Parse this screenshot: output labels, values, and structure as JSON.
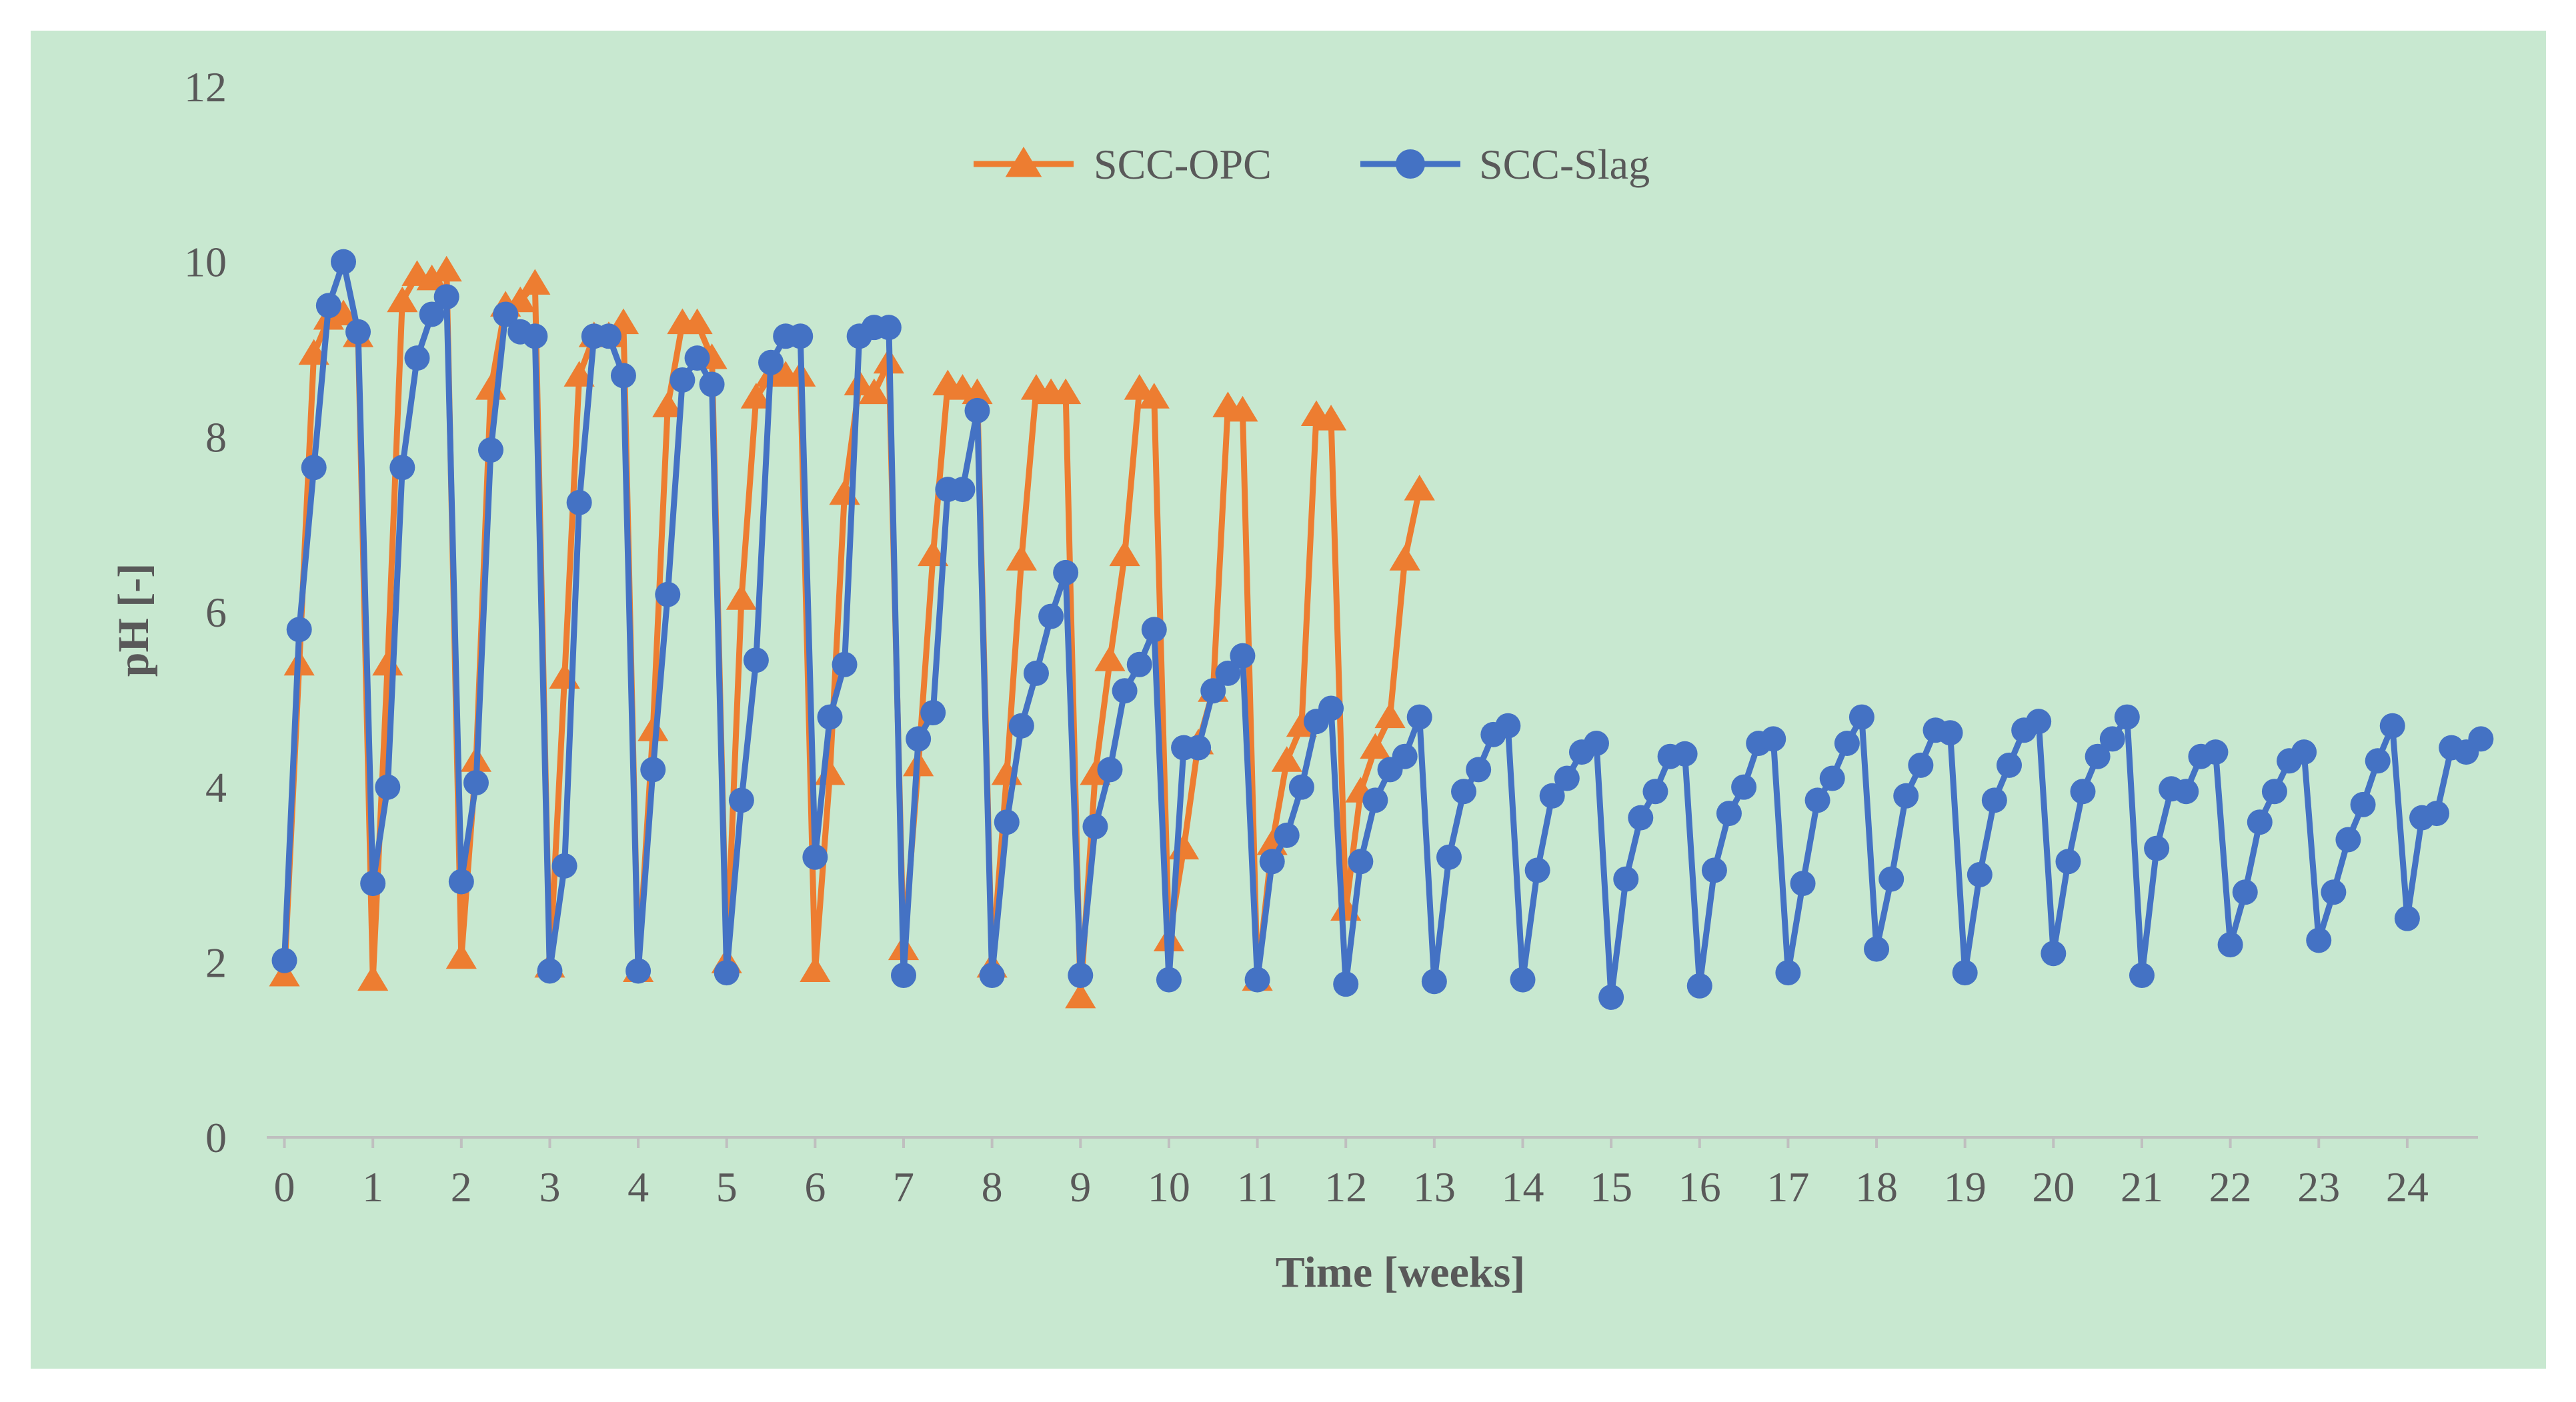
{
  "colors": {
    "page_background": "#ffffff",
    "plot_background": "#c8e8d0",
    "axis_line": "#bfbfbf",
    "text": "#595959"
  },
  "chart_data": {
    "type": "line",
    "title": "",
    "xlabel": "Time [weeks]",
    "ylabel": "pH [-]",
    "xlim": [
      -0.2,
      24.8
    ],
    "ylim": [
      0,
      12
    ],
    "x_ticks": [
      "0",
      "1",
      "2",
      "3",
      "4",
      "5",
      "6",
      "7",
      "8",
      "9",
      "10",
      "11",
      "12",
      "13",
      "14",
      "15",
      "16",
      "17",
      "18",
      "19",
      "20",
      "21",
      "22",
      "23",
      "24"
    ],
    "y_ticks": [
      "0",
      "2",
      "4",
      "6",
      "8",
      "10",
      "12"
    ],
    "legend_position": "top-center",
    "series": [
      {
        "name": "SCC-OPC",
        "color": "#ed7d31",
        "marker": "triangle",
        "points": [
          [
            0,
            1.85
          ],
          [
            0.167,
            5.4
          ],
          [
            0.333,
            8.95
          ],
          [
            0.5,
            9.35
          ],
          [
            0.667,
            9.4
          ],
          [
            0.833,
            9.15
          ],
          [
            1.0,
            1.8
          ],
          [
            1.167,
            5.4
          ],
          [
            1.333,
            9.55
          ],
          [
            1.5,
            9.85
          ],
          [
            1.667,
            9.8
          ],
          [
            1.833,
            9.9
          ],
          [
            2.0,
            2.05
          ],
          [
            2.167,
            4.3
          ],
          [
            2.333,
            8.55
          ],
          [
            2.5,
            9.5
          ],
          [
            2.667,
            9.55
          ],
          [
            2.833,
            9.75
          ],
          [
            3.0,
            1.95
          ],
          [
            3.167,
            5.25
          ],
          [
            3.333,
            8.7
          ],
          [
            3.5,
            9.15
          ],
          [
            3.667,
            9.15
          ],
          [
            3.833,
            9.3
          ],
          [
            4.0,
            1.9
          ],
          [
            4.167,
            4.65
          ],
          [
            4.333,
            8.35
          ],
          [
            4.5,
            9.3
          ],
          [
            4.667,
            9.3
          ],
          [
            4.833,
            8.9
          ],
          [
            5.0,
            2.0
          ],
          [
            5.167,
            6.15
          ],
          [
            5.333,
            8.45
          ],
          [
            5.5,
            8.7
          ],
          [
            5.667,
            8.7
          ],
          [
            5.833,
            8.7
          ],
          [
            6.0,
            1.9
          ],
          [
            6.167,
            4.15
          ],
          [
            6.333,
            7.35
          ],
          [
            6.5,
            8.6
          ],
          [
            6.667,
            8.5
          ],
          [
            6.833,
            8.85
          ],
          [
            7.0,
            2.15
          ],
          [
            7.167,
            4.25
          ],
          [
            7.333,
            6.65
          ],
          [
            7.5,
            8.6
          ],
          [
            7.667,
            8.55
          ],
          [
            7.833,
            8.5
          ],
          [
            8.0,
            1.95
          ],
          [
            8.167,
            4.15
          ],
          [
            8.333,
            6.6
          ],
          [
            8.5,
            8.55
          ],
          [
            8.667,
            8.5
          ],
          [
            8.833,
            8.5
          ],
          [
            9.0,
            1.6
          ],
          [
            9.167,
            4.15
          ],
          [
            9.333,
            5.45
          ],
          [
            9.5,
            6.65
          ],
          [
            9.667,
            8.55
          ],
          [
            9.833,
            8.45
          ],
          [
            10.0,
            2.25
          ],
          [
            10.167,
            3.3
          ],
          [
            10.333,
            4.5
          ],
          [
            10.5,
            5.1
          ],
          [
            10.667,
            8.35
          ],
          [
            10.833,
            8.3
          ],
          [
            11.0,
            1.8
          ],
          [
            11.167,
            3.35
          ],
          [
            11.333,
            4.3
          ],
          [
            11.5,
            4.7
          ],
          [
            11.667,
            8.25
          ],
          [
            11.833,
            8.2
          ],
          [
            12.0,
            2.6
          ],
          [
            12.167,
            3.95
          ],
          [
            12.333,
            4.45
          ],
          [
            12.5,
            4.8
          ],
          [
            12.667,
            6.6
          ],
          [
            12.833,
            7.4
          ]
        ]
      },
      {
        "name": "SCC-Slag",
        "color": "#4472c4",
        "marker": "circle",
        "points": [
          [
            0,
            2.02
          ],
          [
            0.167,
            5.8
          ],
          [
            0.333,
            7.65
          ],
          [
            0.5,
            9.5
          ],
          [
            0.667,
            10.0
          ],
          [
            0.833,
            9.2
          ],
          [
            1.0,
            2.9
          ],
          [
            1.167,
            4.0
          ],
          [
            1.333,
            7.65
          ],
          [
            1.5,
            8.9
          ],
          [
            1.667,
            9.4
          ],
          [
            1.833,
            9.6
          ],
          [
            2.0,
            2.92
          ],
          [
            2.167,
            4.05
          ],
          [
            2.333,
            7.85
          ],
          [
            2.5,
            9.4
          ],
          [
            2.667,
            9.2
          ],
          [
            2.833,
            9.15
          ],
          [
            3.0,
            1.9
          ],
          [
            3.167,
            3.1
          ],
          [
            3.333,
            7.25
          ],
          [
            3.5,
            9.15
          ],
          [
            3.667,
            9.15
          ],
          [
            3.833,
            8.7
          ],
          [
            4.0,
            1.9
          ],
          [
            4.167,
            4.2
          ],
          [
            4.333,
            6.2
          ],
          [
            4.5,
            8.65
          ],
          [
            4.667,
            8.9
          ],
          [
            4.833,
            8.6
          ],
          [
            5.0,
            1.88
          ],
          [
            5.167,
            3.85
          ],
          [
            5.333,
            5.45
          ],
          [
            5.5,
            8.85
          ],
          [
            5.667,
            9.15
          ],
          [
            5.833,
            9.15
          ],
          [
            6.0,
            3.2
          ],
          [
            6.167,
            4.8
          ],
          [
            6.333,
            5.4
          ],
          [
            6.5,
            9.15
          ],
          [
            6.667,
            9.25
          ],
          [
            6.833,
            9.25
          ],
          [
            7.0,
            1.85
          ],
          [
            7.167,
            4.55
          ],
          [
            7.333,
            4.85
          ],
          [
            7.5,
            7.4
          ],
          [
            7.667,
            7.4
          ],
          [
            7.833,
            8.3
          ],
          [
            8.0,
            1.85
          ],
          [
            8.167,
            3.6
          ],
          [
            8.333,
            4.7
          ],
          [
            8.5,
            5.3
          ],
          [
            8.667,
            5.95
          ],
          [
            8.833,
            6.45
          ],
          [
            9.0,
            1.85
          ],
          [
            9.167,
            3.55
          ],
          [
            9.333,
            4.2
          ],
          [
            9.5,
            5.1
          ],
          [
            9.667,
            5.4
          ],
          [
            9.833,
            5.8
          ],
          [
            10.0,
            1.8
          ],
          [
            10.167,
            4.45
          ],
          [
            10.333,
            4.45
          ],
          [
            10.5,
            5.1
          ],
          [
            10.667,
            5.3
          ],
          [
            10.833,
            5.5
          ],
          [
            11.0,
            1.8
          ],
          [
            11.167,
            3.15
          ],
          [
            11.333,
            3.45
          ],
          [
            11.5,
            4.0
          ],
          [
            11.667,
            4.75
          ],
          [
            11.833,
            4.9
          ],
          [
            12.0,
            1.75
          ],
          [
            12.167,
            3.15
          ],
          [
            12.333,
            3.85
          ],
          [
            12.5,
            4.2
          ],
          [
            12.667,
            4.35
          ],
          [
            12.833,
            4.8
          ],
          [
            13.0,
            1.78
          ],
          [
            13.167,
            3.2
          ],
          [
            13.333,
            3.95
          ],
          [
            13.5,
            4.2
          ],
          [
            13.667,
            4.6
          ],
          [
            13.833,
            4.7
          ],
          [
            14.0,
            1.8
          ],
          [
            14.167,
            3.05
          ],
          [
            14.333,
            3.9
          ],
          [
            14.5,
            4.1
          ],
          [
            14.667,
            4.4
          ],
          [
            14.833,
            4.5
          ],
          [
            15.0,
            1.6
          ],
          [
            15.167,
            2.95
          ],
          [
            15.333,
            3.65
          ],
          [
            15.5,
            3.95
          ],
          [
            15.667,
            4.35
          ],
          [
            15.833,
            4.38
          ],
          [
            16.0,
            1.73
          ],
          [
            16.167,
            3.05
          ],
          [
            16.333,
            3.7
          ],
          [
            16.5,
            4.0
          ],
          [
            16.667,
            4.5
          ],
          [
            16.833,
            4.55
          ],
          [
            17.0,
            1.88
          ],
          [
            17.167,
            2.9
          ],
          [
            17.333,
            3.85
          ],
          [
            17.5,
            4.1
          ],
          [
            17.667,
            4.5
          ],
          [
            17.833,
            4.8
          ],
          [
            18.0,
            2.15
          ],
          [
            18.167,
            2.95
          ],
          [
            18.333,
            3.9
          ],
          [
            18.5,
            4.25
          ],
          [
            18.667,
            4.65
          ],
          [
            18.833,
            4.62
          ],
          [
            19.0,
            1.88
          ],
          [
            19.167,
            3.0
          ],
          [
            19.333,
            3.85
          ],
          [
            19.5,
            4.25
          ],
          [
            19.667,
            4.65
          ],
          [
            19.833,
            4.75
          ],
          [
            20.0,
            2.1
          ],
          [
            20.167,
            3.15
          ],
          [
            20.333,
            3.95
          ],
          [
            20.5,
            4.35
          ],
          [
            20.667,
            4.55
          ],
          [
            20.833,
            4.8
          ],
          [
            21.0,
            1.85
          ],
          [
            21.167,
            3.3
          ],
          [
            21.333,
            3.98
          ],
          [
            21.5,
            3.95
          ],
          [
            21.667,
            4.35
          ],
          [
            21.833,
            4.4
          ],
          [
            22.0,
            2.2
          ],
          [
            22.167,
            2.8
          ],
          [
            22.333,
            3.6
          ],
          [
            22.5,
            3.95
          ],
          [
            22.667,
            4.3
          ],
          [
            22.833,
            4.4
          ],
          [
            23.0,
            2.25
          ],
          [
            23.167,
            2.8
          ],
          [
            23.333,
            3.4
          ],
          [
            23.5,
            3.8
          ],
          [
            23.667,
            4.3
          ],
          [
            23.833,
            4.7
          ],
          [
            24.0,
            2.5
          ],
          [
            24.167,
            3.65
          ],
          [
            24.333,
            3.7
          ],
          [
            24.5,
            4.45
          ],
          [
            24.667,
            4.4
          ],
          [
            24.833,
            4.55
          ]
        ]
      }
    ]
  }
}
